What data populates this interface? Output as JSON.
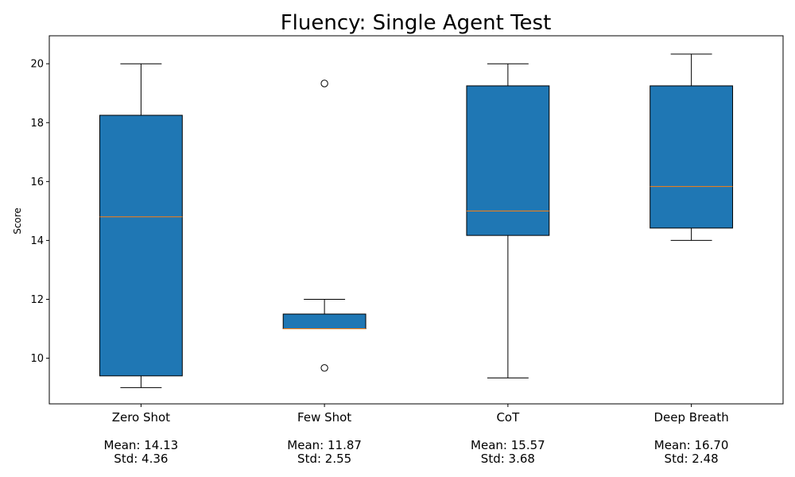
{
  "chart_data": {
    "type": "box",
    "title": "Fluency: Single Agent Test",
    "xlabel": "",
    "ylabel": "Score",
    "ylim": [
      8.45,
      20.95
    ],
    "yticks": [
      10,
      12,
      14,
      16,
      18,
      20
    ],
    "yticklabels": [
      "10",
      "12",
      "14",
      "16",
      "18",
      "20"
    ],
    "grid": false,
    "box_color": "#1f77b4",
    "median_color": "#ff7f0e",
    "categories": [
      {
        "name": "Zero Shot",
        "mean_label": "Mean: 14.13",
        "std_label": "Std: 4.36",
        "whisker_low": 9.0,
        "q1": 9.4,
        "median": 14.8,
        "q3": 18.25,
        "whisker_high": 20.0,
        "outliers": []
      },
      {
        "name": "Few Shot",
        "mean_label": "Mean: 11.87",
        "std_label": "Std: 2.55",
        "whisker_low": 11.0,
        "q1": 11.0,
        "median": 11.0,
        "q3": 11.5,
        "whisker_high": 12.0,
        "outliers": [
          9.67,
          19.33
        ]
      },
      {
        "name": "CoT",
        "mean_label": "Mean: 15.57",
        "std_label": "Std: 3.68",
        "whisker_low": 9.33,
        "q1": 14.17,
        "median": 15.0,
        "q3": 19.25,
        "whisker_high": 20.0,
        "outliers": []
      },
      {
        "name": "Deep Breath",
        "mean_label": "Mean: 16.70",
        "std_label": "Std: 2.48",
        "whisker_low": 14.0,
        "q1": 14.42,
        "median": 15.83,
        "q3": 19.25,
        "whisker_high": 20.33,
        "outliers": []
      }
    ]
  }
}
